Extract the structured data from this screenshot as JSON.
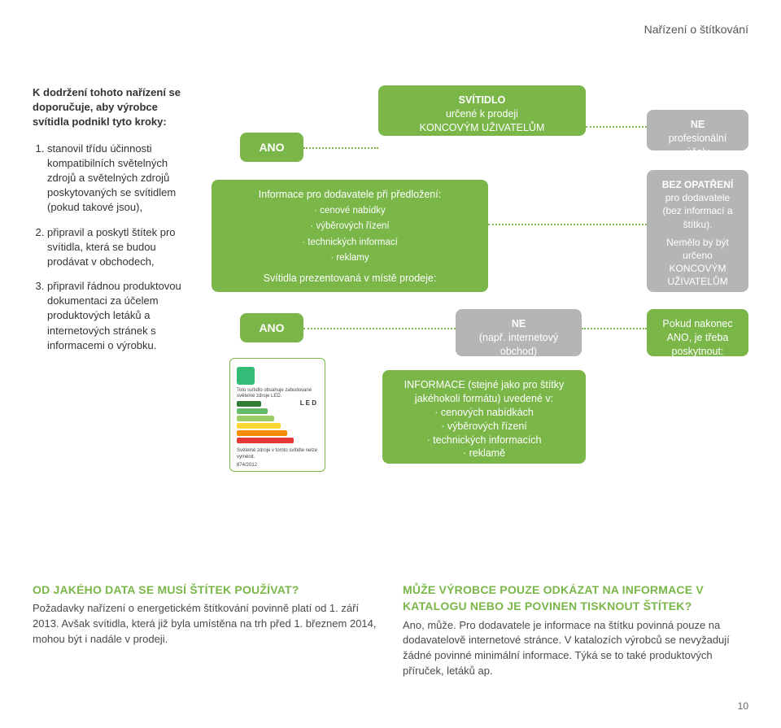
{
  "header": {
    "title": "Nařízení o štítkování"
  },
  "sidebar": {
    "headline": "K dodržení tohoto nařízení se doporučuje, aby výrobce svítidla podnikl tyto kroky:",
    "items": [
      "stanovil třídu účinnosti kompatibilních světelných zdrojů a světelných zdrojů poskytovaných se svítidlem (pokud takové jsou),",
      "připravil a poskytl štítek pro svítidla, která se budou prodávat v obchodech,",
      "připravil řádnou produktovou dokumentaci za účelem produktových letáků a internetových stránek s informacemi o výrobku."
    ]
  },
  "flow": {
    "top": {
      "l1": "SVÍTIDLO",
      "l2": "určené k prodeji",
      "l3": "KONCOVÝM UŽIVATELŮM"
    },
    "ano": "ANO",
    "neProf": {
      "l1": "NE",
      "l2": "profesionální účely"
    },
    "info": {
      "title": "Informace pro dodavatele při předložení:",
      "items": [
        "cenové nabídky",
        "výběrových řízení",
        "technických informací",
        "reklamy"
      ],
      "footer": "Svítidla prezentovaná v místě prodeje:"
    },
    "bez": {
      "l1": "BEZ OPATŘENÍ",
      "l2": "pro dodavatele",
      "l3": "(bez informací a štítku).",
      "l4": "Nemělo by být určeno KONCOVÝM UŽIVATELŮM"
    },
    "neShop": {
      "l1": "NE",
      "l2": "(např. internetový obchod)"
    },
    "pokud": {
      "l1": "Pokud nakonec ANO, je třeba poskytnout:"
    },
    "infoSame": {
      "title": "INFORMACE (stejné jako pro štítky jakéhokoli formátu) uvedené v:",
      "items": [
        "cenových nabídkách",
        "výběrových řízení",
        "technických informacích",
        "reklamě"
      ]
    },
    "labelMock": {
      "text1": "Toto svítidlo obsahuje zabudované světelné zdroje LED.",
      "text2": "Světelné zdroje v tomto svítidle nelze vyměnit.",
      "ref": "874/2012",
      "led": "L E D",
      "bars": [
        "#2e7d32",
        "#66bb6a",
        "#9ccc65",
        "#fdd835",
        "#fb8c00",
        "#e53935"
      ]
    },
    "colors": {
      "green": "#7ab648",
      "gray": "#b5b5b5"
    }
  },
  "footer": {
    "left": {
      "title": "OD JAKÉHO DATA SE MUSÍ ŠTÍTEK POUŽÍVAT?",
      "body": "Požadavky nařízení o energetickém štítkování povinně platí od 1. září 2013. Avšak svítidla, která již byla umístěna na trh před 1. březnem 2014, mohou být i nadále v prodeji."
    },
    "right": {
      "title": "MŮŽE VÝROBCE POUZE ODKÁZAT NA INFORMACE V KATALOGU NEBO JE POVINEN TISKNOUT ŠTÍTEK?",
      "body": "Ano, může. Pro dodavatele je informace na štítku povinná pouze na dodavatelově internetové stránce. V katalozích výrobců se nevyžadují žádné povinné minimální informace. Týká se to také produktových příruček, letáků ap."
    }
  },
  "pageNumber": "10"
}
